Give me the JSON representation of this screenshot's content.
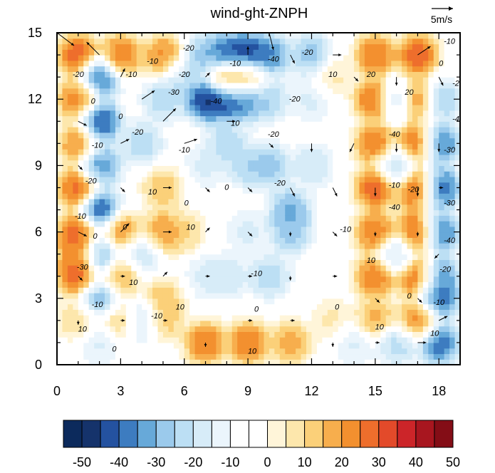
{
  "chart_data": {
    "type": "heatmap",
    "title": "wind-ght-ZNPH",
    "xlim": [
      0,
      19
    ],
    "ylim": [
      0,
      15
    ],
    "x_ticks": [
      "0",
      "3",
      "6",
      "9",
      "12",
      "15",
      "18"
    ],
    "y_ticks": [
      "0",
      "3",
      "6",
      "9",
      "12",
      "15"
    ],
    "reference_vector": {
      "label": "5m/s",
      "magnitude": 5
    },
    "colorbar": {
      "ticks": [
        "-50",
        "-40",
        "-30",
        "-20",
        "-10",
        "0",
        "10",
        "20",
        "30",
        "40",
        "50"
      ],
      "levels": [
        -55,
        -50,
        -45,
        -40,
        -35,
        -30,
        -25,
        -20,
        -15,
        -10,
        -5,
        0,
        5,
        10,
        15,
        20,
        25,
        30,
        35,
        40,
        45,
        50,
        55
      ],
      "colors": [
        "#0c2a5c",
        "#15336b",
        "#2452a0",
        "#3d7cc0",
        "#67a9d9",
        "#9bcaec",
        "#bcdff4",
        "#d7ecf8",
        "#ebf5fc",
        "#ffffff",
        "#ffffff",
        "#fff5d9",
        "#fde7ac",
        "#fbd079",
        "#f7ae4d",
        "#f3902f",
        "#ee6e2c",
        "#e34a2a",
        "#cc2529",
        "#a8161f",
        "#840d16"
      ]
    },
    "field_points": [
      {
        "x": 1,
        "y": 14,
        "v": 45
      },
      {
        "x": 1,
        "y": 12,
        "v": 40
      },
      {
        "x": 1,
        "y": 10,
        "v": 35
      },
      {
        "x": 1,
        "y": 8,
        "v": 45
      },
      {
        "x": 1,
        "y": 6,
        "v": 45
      },
      {
        "x": 1,
        "y": 5,
        "v": 40
      },
      {
        "x": 1,
        "y": 4,
        "v": 45
      },
      {
        "x": 1,
        "y": 2,
        "v": 20
      },
      {
        "x": 2,
        "y": 13,
        "v": -45
      },
      {
        "x": 2,
        "y": 11,
        "v": -50
      },
      {
        "x": 2,
        "y": 9,
        "v": -40
      },
      {
        "x": 2,
        "y": 7,
        "v": -50
      },
      {
        "x": 2,
        "y": 5,
        "v": -40
      },
      {
        "x": 2,
        "y": 3,
        "v": -35
      },
      {
        "x": 2,
        "y": 1,
        "v": -15
      },
      {
        "x": 3,
        "y": 14,
        "v": 40
      },
      {
        "x": 3,
        "y": 6,
        "v": 35
      },
      {
        "x": 3,
        "y": 4,
        "v": 30
      },
      {
        "x": 3,
        "y": 2,
        "v": 25
      },
      {
        "x": 4,
        "y": 5,
        "v": -20
      },
      {
        "x": 4,
        "y": 2,
        "v": -25
      },
      {
        "x": 4,
        "y": 10,
        "v": -25
      },
      {
        "x": 5,
        "y": 14,
        "v": 35
      },
      {
        "x": 5,
        "y": 6,
        "v": 35
      },
      {
        "x": 5,
        "y": 3,
        "v": 25
      },
      {
        "x": 5,
        "y": 2,
        "v": 25
      },
      {
        "x": 5,
        "y": 8,
        "v": 25
      },
      {
        "x": 5,
        "y": 12,
        "v": -25
      },
      {
        "x": 6,
        "y": 13,
        "v": -20
      },
      {
        "x": 6,
        "y": 6,
        "v": 20
      },
      {
        "x": 7,
        "y": 1,
        "v": 40
      },
      {
        "x": 7,
        "y": 12,
        "v": -55
      },
      {
        "x": 7,
        "y": 14,
        "v": -30
      },
      {
        "x": 7,
        "y": 9,
        "v": -15
      },
      {
        "x": 7,
        "y": 4,
        "v": -15
      },
      {
        "x": 8,
        "y": 14,
        "v": -50
      },
      {
        "x": 8,
        "y": 13,
        "v": 40
      },
      {
        "x": 8,
        "y": 12,
        "v": -50
      },
      {
        "x": 8,
        "y": 10,
        "v": -25
      },
      {
        "x": 8,
        "y": 4,
        "v": -20
      },
      {
        "x": 9,
        "y": 14,
        "v": -55
      },
      {
        "x": 9,
        "y": 13,
        "v": 35
      },
      {
        "x": 9,
        "y": 12,
        "v": -40
      },
      {
        "x": 9,
        "y": 1,
        "v": 40
      },
      {
        "x": 9,
        "y": 9,
        "v": -25
      },
      {
        "x": 9,
        "y": 6,
        "v": -15
      },
      {
        "x": 10,
        "y": 14,
        "v": -40
      },
      {
        "x": 10,
        "y": 12,
        "v": -25
      },
      {
        "x": 10,
        "y": 9,
        "v": -30
      },
      {
        "x": 10,
        "y": 4,
        "v": -25
      },
      {
        "x": 11,
        "y": 7,
        "v": -35
      },
      {
        "x": 11,
        "y": 6,
        "v": -30
      },
      {
        "x": 11,
        "y": 1,
        "v": 30
      },
      {
        "x": 12,
        "y": 14,
        "v": -30
      },
      {
        "x": 12,
        "y": 12,
        "v": -15
      },
      {
        "x": 12,
        "y": 9,
        "v": -20
      },
      {
        "x": 13,
        "y": 13,
        "v": 15
      },
      {
        "x": 13,
        "y": 2,
        "v": 15
      },
      {
        "x": 14,
        "y": 1,
        "v": -15
      },
      {
        "x": 15,
        "y": 14,
        "v": 40
      },
      {
        "x": 15,
        "y": 12,
        "v": 45
      },
      {
        "x": 15,
        "y": 10,
        "v": 40
      },
      {
        "x": 15,
        "y": 8,
        "v": 45
      },
      {
        "x": 15,
        "y": 6,
        "v": 40
      },
      {
        "x": 15,
        "y": 4,
        "v": 40
      },
      {
        "x": 15,
        "y": 2,
        "v": 30
      },
      {
        "x": 16,
        "y": 12,
        "v": -25
      },
      {
        "x": 16,
        "y": 9,
        "v": -25
      },
      {
        "x": 16,
        "y": 5,
        "v": -20
      },
      {
        "x": 16,
        "y": 1,
        "v": -25
      },
      {
        "x": 17,
        "y": 14,
        "v": 45
      },
      {
        "x": 17,
        "y": 12,
        "v": 45
      },
      {
        "x": 17,
        "y": 10,
        "v": 45
      },
      {
        "x": 17,
        "y": 8,
        "v": 50
      },
      {
        "x": 17,
        "y": 6,
        "v": 50
      },
      {
        "x": 17,
        "y": 4,
        "v": 45
      },
      {
        "x": 17,
        "y": 2,
        "v": 40
      },
      {
        "x": 18,
        "y": 12,
        "v": -30
      },
      {
        "x": 18,
        "y": 10,
        "v": -45
      },
      {
        "x": 18,
        "y": 8,
        "v": -50
      },
      {
        "x": 18,
        "y": 6,
        "v": -45
      },
      {
        "x": 18,
        "y": 4,
        "v": -40
      },
      {
        "x": 18,
        "y": 3,
        "v": -45
      },
      {
        "x": 18,
        "y": 1,
        "v": -45
      }
    ],
    "vectors": [
      {
        "x": 0,
        "y": 15,
        "u": 4,
        "v": -3
      },
      {
        "x": 2,
        "y": 14,
        "u": -3,
        "v": 3
      },
      {
        "x": 3,
        "y": 13,
        "u": 1,
        "v": 2
      },
      {
        "x": 4,
        "y": 12,
        "u": 3,
        "v": 2
      },
      {
        "x": 5,
        "y": 11,
        "u": 3,
        "v": 3
      },
      {
        "x": 7,
        "y": 13,
        "u": 1,
        "v": 1
      },
      {
        "x": 9,
        "y": 14,
        "u": 0,
        "v": 2
      },
      {
        "x": 10,
        "y": 15,
        "u": 1,
        "v": -4
      },
      {
        "x": 11,
        "y": 14,
        "u": 1,
        "v": -2
      },
      {
        "x": 13,
        "y": 14,
        "u": 2,
        "v": 0
      },
      {
        "x": 14,
        "y": 13,
        "u": 1,
        "v": -1
      },
      {
        "x": 16,
        "y": 13,
        "u": 0,
        "v": -2
      },
      {
        "x": 17,
        "y": 14,
        "u": 3,
        "v": 2
      },
      {
        "x": 18,
        "y": 13,
        "u": 1,
        "v": -2
      },
      {
        "x": 1,
        "y": 11,
        "u": 2,
        "v": -1
      },
      {
        "x": 3,
        "y": 10,
        "u": 2,
        "v": 1
      },
      {
        "x": 6,
        "y": 10,
        "u": 3,
        "v": 1
      },
      {
        "x": 8,
        "y": 11,
        "u": 2,
        "v": 0
      },
      {
        "x": 10,
        "y": 10,
        "u": 1,
        "v": -1
      },
      {
        "x": 12,
        "y": 10,
        "u": 0,
        "v": -2
      },
      {
        "x": 14,
        "y": 10,
        "u": -1,
        "v": -2
      },
      {
        "x": 16,
        "y": 10,
        "u": 0,
        "v": -2
      },
      {
        "x": 18,
        "y": 10,
        "u": 0,
        "v": -2
      },
      {
        "x": 1,
        "y": 9,
        "u": 1,
        "v": -1
      },
      {
        "x": 3,
        "y": 8,
        "u": 1,
        "v": -1
      },
      {
        "x": 5,
        "y": 8,
        "u": 2,
        "v": 0
      },
      {
        "x": 7,
        "y": 8,
        "u": 1,
        "v": -1
      },
      {
        "x": 9,
        "y": 8,
        "u": 1,
        "v": -1
      },
      {
        "x": 11,
        "y": 8,
        "u": 1,
        "v": -2
      },
      {
        "x": 13,
        "y": 8,
        "u": 1,
        "v": -2
      },
      {
        "x": 15,
        "y": 8,
        "u": 0,
        "v": -2
      },
      {
        "x": 17,
        "y": 8,
        "u": 0,
        "v": -2
      },
      {
        "x": 18,
        "y": 8,
        "u": 1,
        "v": 0
      },
      {
        "x": 1,
        "y": 6,
        "u": 2,
        "v": -1
      },
      {
        "x": 3,
        "y": 6,
        "u": 2,
        "v": 2
      },
      {
        "x": 5,
        "y": 6,
        "u": 2,
        "v": 0
      },
      {
        "x": 7,
        "y": 6,
        "u": 1,
        "v": 1
      },
      {
        "x": 9,
        "y": 6,
        "u": 1,
        "v": -1
      },
      {
        "x": 11,
        "y": 6,
        "u": 0,
        "v": -1
      },
      {
        "x": 13,
        "y": 6,
        "u": 1,
        "v": -1
      },
      {
        "x": 15,
        "y": 6,
        "u": 0,
        "v": -1
      },
      {
        "x": 17,
        "y": 6,
        "u": 0,
        "v": -1
      },
      {
        "x": 18,
        "y": 5,
        "u": -1,
        "v": -1
      },
      {
        "x": 1,
        "y": 4,
        "u": 1,
        "v": -1
      },
      {
        "x": 3,
        "y": 4,
        "u": 1,
        "v": 0
      },
      {
        "x": 5,
        "y": 4,
        "u": 1,
        "v": 1
      },
      {
        "x": 7,
        "y": 4,
        "u": 1,
        "v": 0
      },
      {
        "x": 9,
        "y": 4,
        "u": 1,
        "v": 0
      },
      {
        "x": 11,
        "y": 4,
        "u": 0,
        "v": -1
      },
      {
        "x": 13,
        "y": 4,
        "u": 1,
        "v": 0
      },
      {
        "x": 15,
        "y": 3,
        "u": 1,
        "v": -1
      },
      {
        "x": 17,
        "y": 3,
        "u": 1,
        "v": -1
      },
      {
        "x": 18,
        "y": 2,
        "u": 2,
        "v": 1
      },
      {
        "x": 1,
        "y": 2,
        "u": 0,
        "v": -1
      },
      {
        "x": 3,
        "y": 2,
        "u": 1,
        "v": 0
      },
      {
        "x": 5,
        "y": 2,
        "u": 1,
        "v": 0
      },
      {
        "x": 7,
        "y": 1,
        "u": 0,
        "v": -1
      },
      {
        "x": 9,
        "y": 2,
        "u": 1,
        "v": 0
      },
      {
        "x": 11,
        "y": 2,
        "u": 1,
        "v": 0
      },
      {
        "x": 13,
        "y": 1,
        "u": 0,
        "v": -1
      },
      {
        "x": 15,
        "y": 1,
        "u": 1,
        "v": 0
      },
      {
        "x": 17,
        "y": 1,
        "u": 2,
        "v": 0
      }
    ],
    "contour_labels": [
      {
        "x": 1,
        "y": 13,
        "text": "-20"
      },
      {
        "x": 3.5,
        "y": 13,
        "text": "-10"
      },
      {
        "x": 1.7,
        "y": 11.8,
        "text": "0"
      },
      {
        "x": 6.2,
        "y": 14.2,
        "text": "-20"
      },
      {
        "x": 4.5,
        "y": 13.6,
        "text": "-10"
      },
      {
        "x": 6,
        "y": 13,
        "text": "-20"
      },
      {
        "x": 5.5,
        "y": 12.2,
        "text": "-30"
      },
      {
        "x": 7.5,
        "y": 11.8,
        "text": "-40"
      },
      {
        "x": 8.4,
        "y": 13.5,
        "text": "-10"
      },
      {
        "x": 10.2,
        "y": 13.7,
        "text": "-40"
      },
      {
        "x": 11.8,
        "y": 14,
        "text": "-20"
      },
      {
        "x": 11.2,
        "y": 11.9,
        "text": "-20"
      },
      {
        "x": 13,
        "y": 13,
        "text": "10"
      },
      {
        "x": 14.8,
        "y": 13,
        "text": "20"
      },
      {
        "x": 16.6,
        "y": 12.2,
        "text": "20"
      },
      {
        "x": 18.5,
        "y": 14.5,
        "text": "-10"
      },
      {
        "x": 18.1,
        "y": 13.5,
        "text": "0"
      },
      {
        "x": 18.9,
        "y": 12.6,
        "text": "-20"
      },
      {
        "x": 18.9,
        "y": 11,
        "text": "-40"
      },
      {
        "x": 3,
        "y": 11.1,
        "text": "0"
      },
      {
        "x": 3.8,
        "y": 10.4,
        "text": "-20"
      },
      {
        "x": 1.9,
        "y": 9.8,
        "text": "-10"
      },
      {
        "x": 6,
        "y": 9.6,
        "text": "-10"
      },
      {
        "x": 8.4,
        "y": 10.8,
        "text": "10"
      },
      {
        "x": 10.2,
        "y": 10.3,
        "text": "-20"
      },
      {
        "x": 15.9,
        "y": 10.3,
        "text": "-40"
      },
      {
        "x": 18.5,
        "y": 9.6,
        "text": "-30"
      },
      {
        "x": 1.6,
        "y": 8.2,
        "text": "-20"
      },
      {
        "x": 4.5,
        "y": 7.7,
        "text": "10"
      },
      {
        "x": 6.1,
        "y": 7.2,
        "text": "0"
      },
      {
        "x": 8,
        "y": 7.9,
        "text": "0"
      },
      {
        "x": 10.5,
        "y": 8.1,
        "text": "-20"
      },
      {
        "x": 15.9,
        "y": 8,
        "text": "-10"
      },
      {
        "x": 16.8,
        "y": 7.8,
        "text": "-20"
      },
      {
        "x": 18.5,
        "y": 7.2,
        "text": "-30"
      },
      {
        "x": 15.9,
        "y": 7,
        "text": "-40"
      },
      {
        "x": 1.1,
        "y": 6.6,
        "text": "-10"
      },
      {
        "x": 1.8,
        "y": 5.7,
        "text": "0"
      },
      {
        "x": 3.2,
        "y": 6.1,
        "text": "0"
      },
      {
        "x": 6.3,
        "y": 6.1,
        "text": "10"
      },
      {
        "x": 13.6,
        "y": 6,
        "text": "-10"
      },
      {
        "x": 18.5,
        "y": 5.5,
        "text": "-40"
      },
      {
        "x": 1.2,
        "y": 4.3,
        "text": "-30"
      },
      {
        "x": 3.6,
        "y": 3.6,
        "text": "10"
      },
      {
        "x": 9.4,
        "y": 4,
        "text": "-10"
      },
      {
        "x": 14.8,
        "y": 4.6,
        "text": "10"
      },
      {
        "x": 18.3,
        "y": 4.2,
        "text": "-20"
      },
      {
        "x": 16.6,
        "y": 3,
        "text": "0"
      },
      {
        "x": 18,
        "y": 2.7,
        "text": "-10"
      },
      {
        "x": 1.9,
        "y": 2.6,
        "text": "-10"
      },
      {
        "x": 4.7,
        "y": 2.1,
        "text": "-10"
      },
      {
        "x": 5.8,
        "y": 2.5,
        "text": "10"
      },
      {
        "x": 1.2,
        "y": 1.5,
        "text": "10"
      },
      {
        "x": 2.7,
        "y": 0.6,
        "text": "0"
      },
      {
        "x": 9.4,
        "y": 2.4,
        "text": "0"
      },
      {
        "x": 13.2,
        "y": 2.5,
        "text": "0"
      },
      {
        "x": 15.2,
        "y": 1.6,
        "text": "10"
      },
      {
        "x": 17.8,
        "y": 1.3,
        "text": "10"
      },
      {
        "x": 9.2,
        "y": 0.5,
        "text": "10"
      }
    ]
  }
}
